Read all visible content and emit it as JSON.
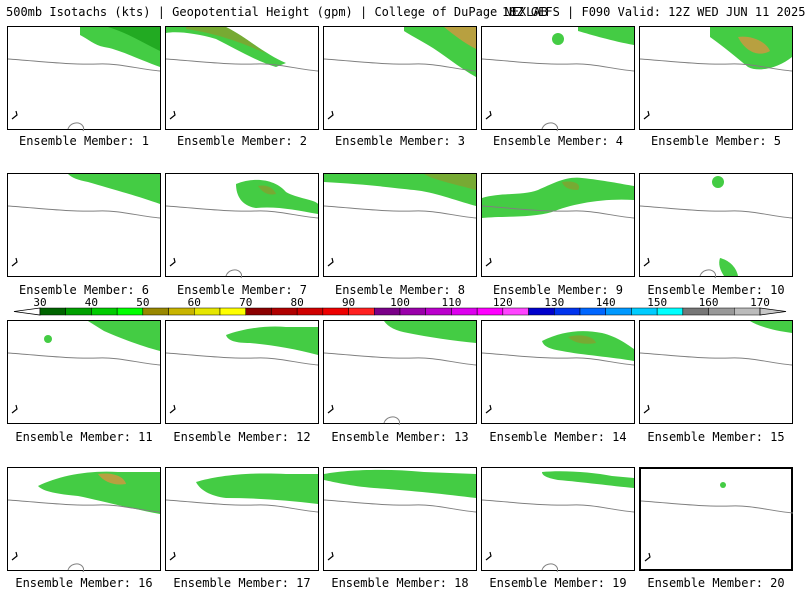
{
  "header": {
    "title": "500mb Isotachs (kts) | Geopotential Height (gpm) | College of DuPage NEXLAB",
    "run": "18Z GEFS | F090 Valid: 12Z WED JUN 11 2025"
  },
  "panel_caption_prefix": "Ensemble Member: ",
  "members": [
    {
      "label": "Ensemble Member: 1"
    },
    {
      "label": "Ensemble Member: 2"
    },
    {
      "label": "Ensemble Member: 3"
    },
    {
      "label": "Ensemble Member: 4"
    },
    {
      "label": "Ensemble Member: 5"
    },
    {
      "label": "Ensemble Member: 6"
    },
    {
      "label": "Ensemble Member: 7"
    },
    {
      "label": "Ensemble Member: 8"
    },
    {
      "label": "Ensemble Member: 9"
    },
    {
      "label": "Ensemble Member: 10"
    },
    {
      "label": "Ensemble Member: 11"
    },
    {
      "label": "Ensemble Member: 12"
    },
    {
      "label": "Ensemble Member: 13"
    },
    {
      "label": "Ensemble Member: 14"
    },
    {
      "label": "Ensemble Member: 15"
    },
    {
      "label": "Ensemble Member: 16"
    },
    {
      "label": "Ensemble Member: 17"
    },
    {
      "label": "Ensemble Member: 18"
    },
    {
      "label": "Ensemble Member: 19"
    },
    {
      "label": "Ensemble Member: 20"
    }
  ],
  "legend": {
    "ticks": [
      "30",
      "40",
      "50",
      "60",
      "70",
      "80",
      "90",
      "100",
      "110",
      "120",
      "130",
      "140",
      "150",
      "160",
      "170"
    ],
    "colors": [
      "#006400",
      "#00a000",
      "#00cc00",
      "#00ff00",
      "#998800",
      "#c8b400",
      "#e6e600",
      "#ffff00",
      "#8b0000",
      "#b00000",
      "#d00000",
      "#ee0000",
      "#ff2020",
      "#7a0088",
      "#9a00aa",
      "#bb00cc",
      "#dd00ee",
      "#ff00ff",
      "#ff44ff",
      "#0000cc",
      "#0033ee",
      "#0066ff",
      "#0099ff",
      "#00ccff",
      "#00ffff",
      "#777777",
      "#999999",
      "#bbbbbb"
    ]
  },
  "colors": {
    "isotach_low": "#22aa22",
    "isotach_mid": "#44cc44",
    "isotach_high": "#77aa33",
    "isotach_peak": "#b8a040",
    "height_contour": "#808080",
    "coast": "#000000"
  }
}
